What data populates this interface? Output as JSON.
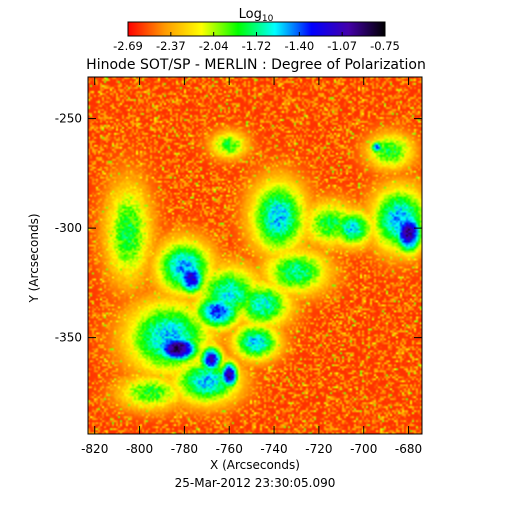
{
  "chart_data": {
    "type": "heatmap",
    "title": "Hinode SOT/SP - MERLIN : Degree of Polarization",
    "xlabel": "X (Arcseconds)",
    "ylabel": "Y (Arcseconds)",
    "timestamp": "25-Mar-2012 23:30:05.090",
    "colorbar": {
      "label_base": "Log",
      "label_sub": "10",
      "ticks": [
        "-2.69",
        "-2.37",
        "-2.04",
        "-1.72",
        "-1.40",
        "-1.07",
        "-0.75"
      ],
      "range": [
        -2.69,
        -0.75
      ],
      "colors": [
        "#ff0000",
        "#ff9900",
        "#ffff00",
        "#00ff00",
        "#00ffff",
        "#0000ff",
        "#4400aa",
        "#000000"
      ]
    },
    "x_ticks": [
      "-820",
      "-800",
      "-780",
      "-760",
      "-740",
      "-720",
      "-700",
      "-680"
    ],
    "y_ticks": [
      "-250",
      "-300",
      "-350"
    ],
    "xlim": [
      -823,
      -674
    ],
    "ylim": [
      -394,
      -231
    ],
    "features": [
      {
        "x": -783,
        "y": -355,
        "peak": -0.8,
        "sx": 9,
        "sy": 6
      },
      {
        "x": -787,
        "y": -350,
        "peak": -1.5,
        "sx": 18,
        "sy": 16
      },
      {
        "x": -777,
        "y": -323,
        "peak": -1.1,
        "sx": 6,
        "sy": 7
      },
      {
        "x": -780,
        "y": -318,
        "peak": -1.45,
        "sx": 12,
        "sy": 12
      },
      {
        "x": -765,
        "y": -338,
        "peak": -1.3,
        "sx": 10,
        "sy": 8
      },
      {
        "x": -760,
        "y": -330,
        "peak": -1.6,
        "sx": 14,
        "sy": 12
      },
      {
        "x": -745,
        "y": -335,
        "peak": -1.6,
        "sx": 12,
        "sy": 10
      },
      {
        "x": -748,
        "y": -352,
        "peak": -1.5,
        "sx": 10,
        "sy": 8
      },
      {
        "x": -768,
        "y": -360,
        "peak": -1.1,
        "sx": 5,
        "sy": 6
      },
      {
        "x": -760,
        "y": -367,
        "peak": -1.0,
        "sx": 4,
        "sy": 6
      },
      {
        "x": -770,
        "y": -370,
        "peak": -1.5,
        "sx": 14,
        "sy": 10
      },
      {
        "x": -738,
        "y": -295,
        "peak": -1.5,
        "sx": 12,
        "sy": 16
      },
      {
        "x": -730,
        "y": -320,
        "peak": -1.7,
        "sx": 14,
        "sy": 10
      },
      {
        "x": -715,
        "y": -298,
        "peak": -1.8,
        "sx": 12,
        "sy": 10
      },
      {
        "x": -705,
        "y": -300,
        "peak": -1.55,
        "sx": 9,
        "sy": 8
      },
      {
        "x": -680,
        "y": -302,
        "peak": -0.95,
        "sx": 6,
        "sy": 9
      },
      {
        "x": -684,
        "y": -296,
        "peak": -1.45,
        "sx": 12,
        "sy": 14
      },
      {
        "x": -688,
        "y": -265,
        "peak": -1.8,
        "sx": 10,
        "sy": 8
      },
      {
        "x": -694,
        "y": -263,
        "peak": -1.4,
        "sx": 3,
        "sy": 3
      },
      {
        "x": -760,
        "y": -262,
        "peak": -1.85,
        "sx": 8,
        "sy": 6
      },
      {
        "x": -805,
        "y": -302,
        "peak": -1.8,
        "sx": 10,
        "sy": 22
      },
      {
        "x": -795,
        "y": -375,
        "peak": -1.85,
        "sx": 14,
        "sy": 8
      }
    ]
  }
}
